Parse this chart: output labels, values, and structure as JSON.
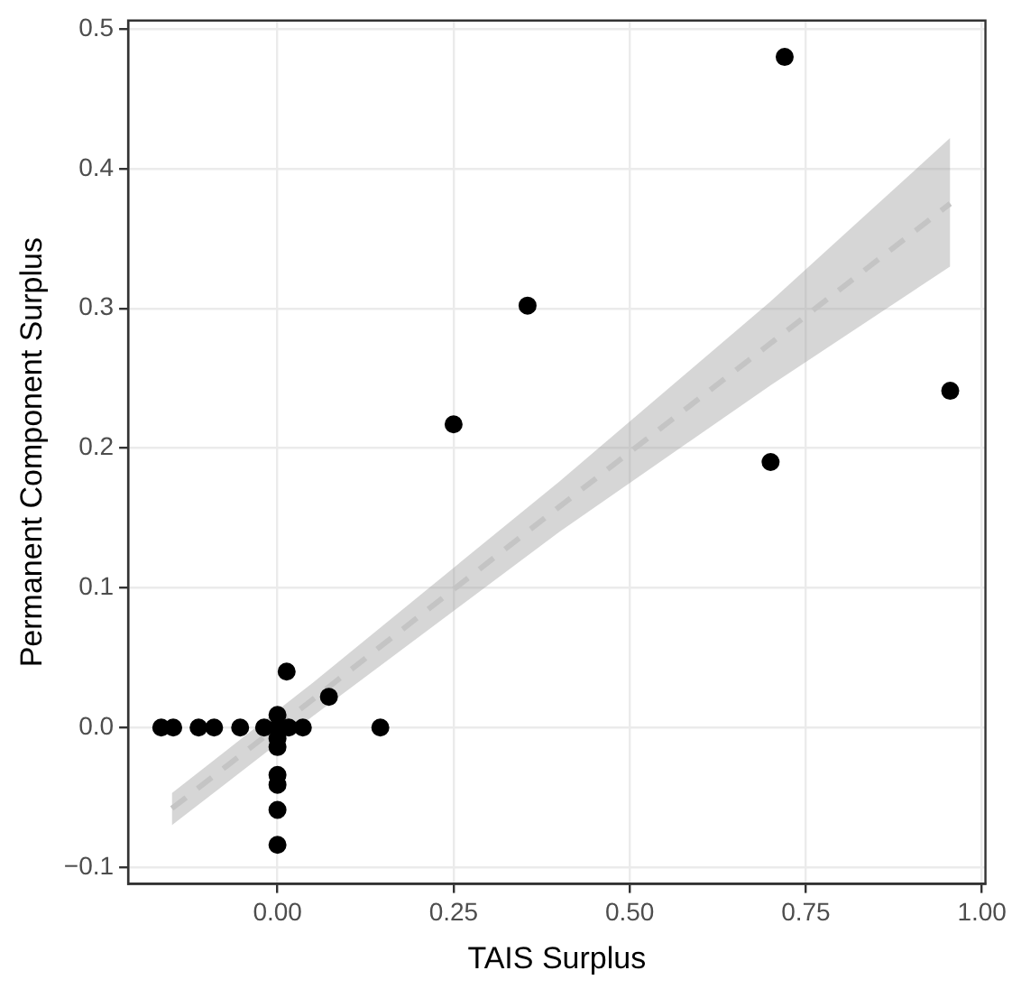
{
  "chart_data": {
    "type": "scatter",
    "xlabel": "TAIS Surplus",
    "ylabel": "Permanent Component Surplus",
    "xlim": [
      -0.212,
      1.005
    ],
    "ylim": [
      -0.112,
      0.506
    ],
    "xticks": [
      {
        "value": 0,
        "label": "0.00"
      },
      {
        "value": 0.25,
        "label": "0.25"
      },
      {
        "value": 0.5,
        "label": "0.50"
      },
      {
        "value": 0.75,
        "label": "0.75"
      },
      {
        "value": 1,
        "label": "1.00"
      }
    ],
    "yticks": [
      {
        "value": -0.1,
        "label": "−0.1"
      },
      {
        "value": 0,
        "label": "0.0"
      },
      {
        "value": 0.1,
        "label": "0.1"
      },
      {
        "value": 0.2,
        "label": "0.2"
      },
      {
        "value": 0.3,
        "label": "0.3"
      },
      {
        "value": 0.4,
        "label": "0.4"
      },
      {
        "value": 0.5,
        "label": "0.5"
      }
    ],
    "grid": true,
    "legend": false,
    "marker": "circle",
    "series": [
      {
        "type": "scatter",
        "color": "#000000",
        "x": [
          -0.165,
          -0.148,
          -0.112,
          -0.09,
          -0.053,
          -0.019,
          0,
          0,
          0.016,
          0.036,
          0.146,
          0.073,
          0.013,
          0,
          0,
          0,
          0,
          0,
          0,
          0.25,
          0.355,
          0.7,
          0.72,
          0.955
        ],
        "values": [
          0,
          0,
          0,
          0,
          0,
          0,
          0.009,
          0,
          0,
          0,
          0,
          0.022,
          0.04,
          -0.008,
          -0.014,
          -0.034,
          -0.041,
          -0.059,
          -0.084,
          0.217,
          0.302,
          0.19,
          0.48,
          0.241
        ]
      },
      {
        "type": "line",
        "color": "#c4c4c4",
        "line_style": "dashed",
        "marker": "none",
        "x": [
          -0.15,
          0.05,
          0.4,
          0.7,
          0.955
        ],
        "values": [
          -0.058,
          0.02,
          0.158,
          0.275,
          0.375
        ],
        "lower": [
          -0.07,
          0.008,
          0.14,
          0.245,
          0.33
        ],
        "upper": [
          -0.047,
          0.032,
          0.176,
          0.305,
          0.422
        ]
      }
    ]
  }
}
